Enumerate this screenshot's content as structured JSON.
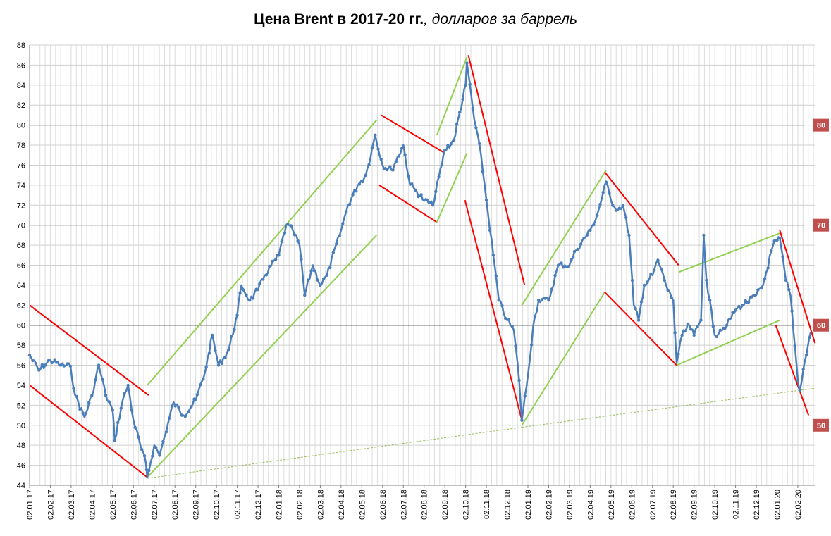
{
  "title": {
    "bold": "Цена Brent в 2017-20 гг.",
    "italic": ", долларов за баррель"
  },
  "chart_data": {
    "type": "line",
    "title": "Цена Brent в 2017-20 гг., долларов за баррель",
    "ylim": [
      44,
      88
    ],
    "y_ticks": [
      44,
      46,
      48,
      50,
      52,
      54,
      56,
      58,
      60,
      62,
      64,
      66,
      68,
      70,
      72,
      74,
      76,
      78,
      80,
      82,
      84,
      86,
      88
    ],
    "x_tick_labels": [
      "02.01.17",
      "02.02.17",
      "02.03.17",
      "02.04.17",
      "02.05.17",
      "02.06.17",
      "02.07.17",
      "02.08.17",
      "02.09.17",
      "02.10.17",
      "02.11.17",
      "02.12.17",
      "02.01.18",
      "02.02.18",
      "02.03.18",
      "02.04.18",
      "02.05.18",
      "02.06.18",
      "02.07.18",
      "02.08.18",
      "02.09.18",
      "02.10.18",
      "02.11.18",
      "02.12.18",
      "02.01.19",
      "02.02.19",
      "02.03.19",
      "02.04.19",
      "02.05.19",
      "02.06.19",
      "02.07.19",
      "02.08.19",
      "02.09.19",
      "02.10.19",
      "02.11.19",
      "02.12.19",
      "02.01.20",
      "02.02.20"
    ],
    "grid": true,
    "color_series": "#4a7ebb",
    "series": [
      {
        "points": [
          [
            "02.01.17",
            57.0
          ],
          [
            "16.01.17",
            55.5
          ],
          [
            "02.02.17",
            56.5
          ],
          [
            "16.02.17",
            56.0
          ],
          [
            "01.03.17",
            55.9
          ],
          [
            "08.03.17",
            53.0
          ],
          [
            "22.03.17",
            50.8
          ],
          [
            "02.04.17",
            53.0
          ],
          [
            "12.04.17",
            56.0
          ],
          [
            "22.04.17",
            53.0
          ],
          [
            "02.05.17",
            51.5
          ],
          [
            "05.05.17",
            48.5
          ],
          [
            "17.05.17",
            52.5
          ],
          [
            "25.05.17",
            54.0
          ],
          [
            "02.06.17",
            50.5
          ],
          [
            "12.06.17",
            48.0
          ],
          [
            "20.06.17",
            46.2
          ],
          [
            "22.06.17",
            44.8
          ],
          [
            "02.07.17",
            48.0
          ],
          [
            "10.07.17",
            47.0
          ],
          [
            "18.07.17",
            49.0
          ],
          [
            "31.07.17",
            52.3
          ],
          [
            "15.08.17",
            51.0
          ],
          [
            "02.09.17",
            52.5
          ],
          [
            "15.09.17",
            55.2
          ],
          [
            "26.09.17",
            59.0
          ],
          [
            "05.10.17",
            56.0
          ],
          [
            "20.10.17",
            57.5
          ],
          [
            "02.11.17",
            61.0
          ],
          [
            "08.11.17",
            64.0
          ],
          [
            "20.11.17",
            62.5
          ],
          [
            "02.12.17",
            63.5
          ],
          [
            "12.12.17",
            65.0
          ],
          [
            "02.01.18",
            67.0
          ],
          [
            "13.01.18",
            70.0
          ],
          [
            "23.01.18",
            69.5
          ],
          [
            "02.02.18",
            68.0
          ],
          [
            "09.02.18",
            63.0
          ],
          [
            "20.02.18",
            66.0
          ],
          [
            "02.03.18",
            64.0
          ],
          [
            "12.03.18",
            65.0
          ],
          [
            "02.04.18",
            69.5
          ],
          [
            "12.04.18",
            72.0
          ],
          [
            "26.04.18",
            74.0
          ],
          [
            "08.05.18",
            75.0
          ],
          [
            "22.05.18",
            79.0
          ],
          [
            "02.06.18",
            76.0
          ],
          [
            "15.06.18",
            75.5
          ],
          [
            "02.07.18",
            78.0
          ],
          [
            "12.07.18",
            74.0
          ],
          [
            "20.07.18",
            73.5
          ],
          [
            "02.08.18",
            72.5
          ],
          [
            "15.08.18",
            72.0
          ],
          [
            "02.09.18",
            77.5
          ],
          [
            "15.09.18",
            78.5
          ],
          [
            "02.10.18",
            84.0
          ],
          [
            "04.10.18",
            86.2
          ],
          [
            "15.10.18",
            80.5
          ],
          [
            "25.10.18",
            77.0
          ],
          [
            "02.11.18",
            72.5
          ],
          [
            "12.11.18",
            67.0
          ],
          [
            "20.11.18",
            62.5
          ],
          [
            "02.12.18",
            60.5
          ],
          [
            "12.12.18",
            59.5
          ],
          [
            "20.12.18",
            54.5
          ],
          [
            "24.12.18",
            50.5
          ],
          [
            "02.01.19",
            55.0
          ],
          [
            "10.01.19",
            60.0
          ],
          [
            "18.01.19",
            62.5
          ],
          [
            "02.02.19",
            62.5
          ],
          [
            "15.02.19",
            66.0
          ],
          [
            "02.03.19",
            66.0
          ],
          [
            "12.03.19",
            67.5
          ],
          [
            "02.04.19",
            69.5
          ],
          [
            "12.04.19",
            71.0
          ],
          [
            "25.04.19",
            74.3
          ],
          [
            "02.05.19",
            72.5
          ],
          [
            "12.05.19",
            71.5
          ],
          [
            "20.05.19",
            72.0
          ],
          [
            "29.05.19",
            69.0
          ],
          [
            "05.06.19",
            62.0
          ],
          [
            "12.06.19",
            60.5
          ],
          [
            "20.06.19",
            64.0
          ],
          [
            "02.07.19",
            65.0
          ],
          [
            "10.07.19",
            66.5
          ],
          [
            "25.07.19",
            63.5
          ],
          [
            "02.08.19",
            62.5
          ],
          [
            "07.08.19",
            56.2
          ],
          [
            "15.08.19",
            59.0
          ],
          [
            "26.08.19",
            60.0
          ],
          [
            "02.09.19",
            59.0
          ],
          [
            "12.09.19",
            60.5
          ],
          [
            "16.09.19",
            69.0
          ],
          [
            "20.09.19",
            64.5
          ],
          [
            "02.10.19",
            59.0
          ],
          [
            "10.10.19",
            59.5
          ],
          [
            "20.10.19",
            60.0
          ],
          [
            "02.11.19",
            61.5
          ],
          [
            "12.11.19",
            62.0
          ],
          [
            "02.12.19",
            63.0
          ],
          [
            "12.12.19",
            64.0
          ],
          [
            "27.12.19",
            68.0
          ],
          [
            "02.01.20",
            68.5
          ],
          [
            "06.01.20",
            68.7
          ],
          [
            "15.01.20",
            64.5
          ],
          [
            "22.01.20",
            63.0
          ],
          [
            "02.02.20",
            54.5
          ],
          [
            "05.02.20",
            53.5
          ],
          [
            "12.02.20",
            56.5
          ],
          [
            "20.02.20",
            59.3
          ]
        ]
      }
    ],
    "trend_lines": [
      {
        "color": "red",
        "from": [
          "02.01.17",
          62.0
        ],
        "to": [
          "24.06.17",
          53.0
        ]
      },
      {
        "color": "red",
        "from": [
          "02.01.17",
          54.0
        ],
        "to": [
          "22.06.17",
          44.8
        ]
      },
      {
        "color": "green",
        "from": [
          "22.06.17",
          54.0
        ],
        "to": [
          "24.05.18",
          80.5
        ]
      },
      {
        "color": "green",
        "from": [
          "22.06.17",
          44.8
        ],
        "to": [
          "24.05.18",
          69.0
        ]
      },
      {
        "color": "red",
        "from": [
          "31.05.18",
          81.0
        ],
        "to": [
          "02.09.18",
          77.2
        ]
      },
      {
        "color": "red",
        "from": [
          "28.05.18",
          74.0
        ],
        "to": [
          "21.08.18",
          70.3
        ]
      },
      {
        "color": "green",
        "from": [
          "21.08.18",
          79.0
        ],
        "to": [
          "04.10.18",
          86.8
        ]
      },
      {
        "color": "green",
        "from": [
          "21.08.18",
          70.3
        ],
        "to": [
          "04.10.18",
          77.2
        ]
      },
      {
        "color": "red",
        "from": [
          "06.10.18",
          87.0
        ],
        "to": [
          "28.12.18",
          64.0
        ]
      },
      {
        "color": "red",
        "from": [
          "01.10.18",
          72.5
        ],
        "to": [
          "24.12.18",
          50.5
        ]
      },
      {
        "color": "green",
        "from": [
          "24.12.18",
          62.0
        ],
        "to": [
          "25.04.19",
          75.5
        ]
      },
      {
        "color": "green",
        "from": [
          "24.12.18",
          50.0
        ],
        "to": [
          "23.04.19",
          63.3
        ]
      },
      {
        "color": "red",
        "from": [
          "23.04.19",
          75.3
        ],
        "to": [
          "10.08.19",
          66.0
        ]
      },
      {
        "color": "red",
        "from": [
          "23.04.19",
          63.3
        ],
        "to": [
          "07.08.19",
          56.0
        ]
      },
      {
        "color": "green",
        "from": [
          "10.08.19",
          65.3
        ],
        "to": [
          "06.01.20",
          69.2
        ]
      },
      {
        "color": "green",
        "from": [
          "07.08.19",
          56.0
        ],
        "to": [
          "06.01.20",
          60.5
        ]
      },
      {
        "color": "red",
        "from": [
          "06.01.20",
          69.5
        ],
        "to": [
          "26.02.20",
          58.2
        ]
      },
      {
        "color": "red",
        "from": [
          "31.12.19",
          60.0
        ],
        "to": [
          "17.02.20",
          51.0
        ]
      },
      {
        "color": "olive-dotted",
        "from": [
          "22.06.17",
          44.7
        ],
        "to": [
          "24.12.18",
          49.8
        ]
      },
      {
        "color": "olive-dotted",
        "from": [
          "24.12.18",
          49.8
        ],
        "to": [
          "26.02.20",
          53.7
        ]
      }
    ],
    "reference_lines": [
      {
        "value": 80,
        "label": "80"
      },
      {
        "value": 70,
        "label": "70"
      },
      {
        "value": 60,
        "label": "60"
      },
      {
        "value": 50,
        "label": "50"
      }
    ]
  }
}
